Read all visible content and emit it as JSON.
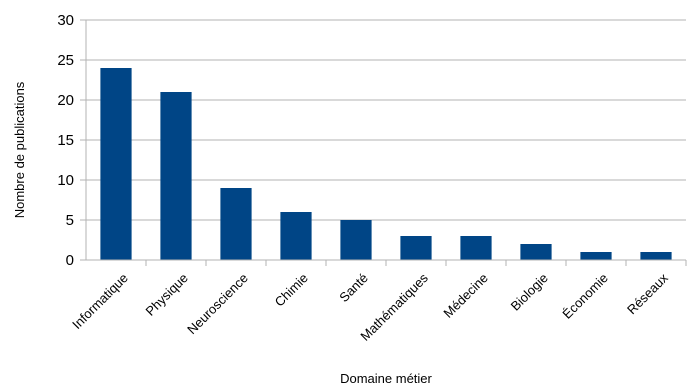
{
  "chart_data": {
    "type": "bar",
    "categories": [
      "Informatique",
      "Physique",
      "Neuroscience",
      "Chimie",
      "Santé",
      "Mathématiques",
      "Médecine",
      "Biologie",
      "Économie",
      "Réseaux"
    ],
    "values": [
      24,
      21,
      9,
      6,
      5,
      3,
      3,
      2,
      1,
      1
    ],
    "title": "",
    "xlabel": "Domaine métier",
    "ylabel": "Nombre de publications",
    "ylim": [
      0,
      30
    ],
    "yticks": [
      0,
      5,
      10,
      15,
      20,
      25,
      30
    ],
    "grid": true,
    "legend": "none",
    "bar_color": "#004586",
    "grid_color": "#b3b3b3"
  }
}
